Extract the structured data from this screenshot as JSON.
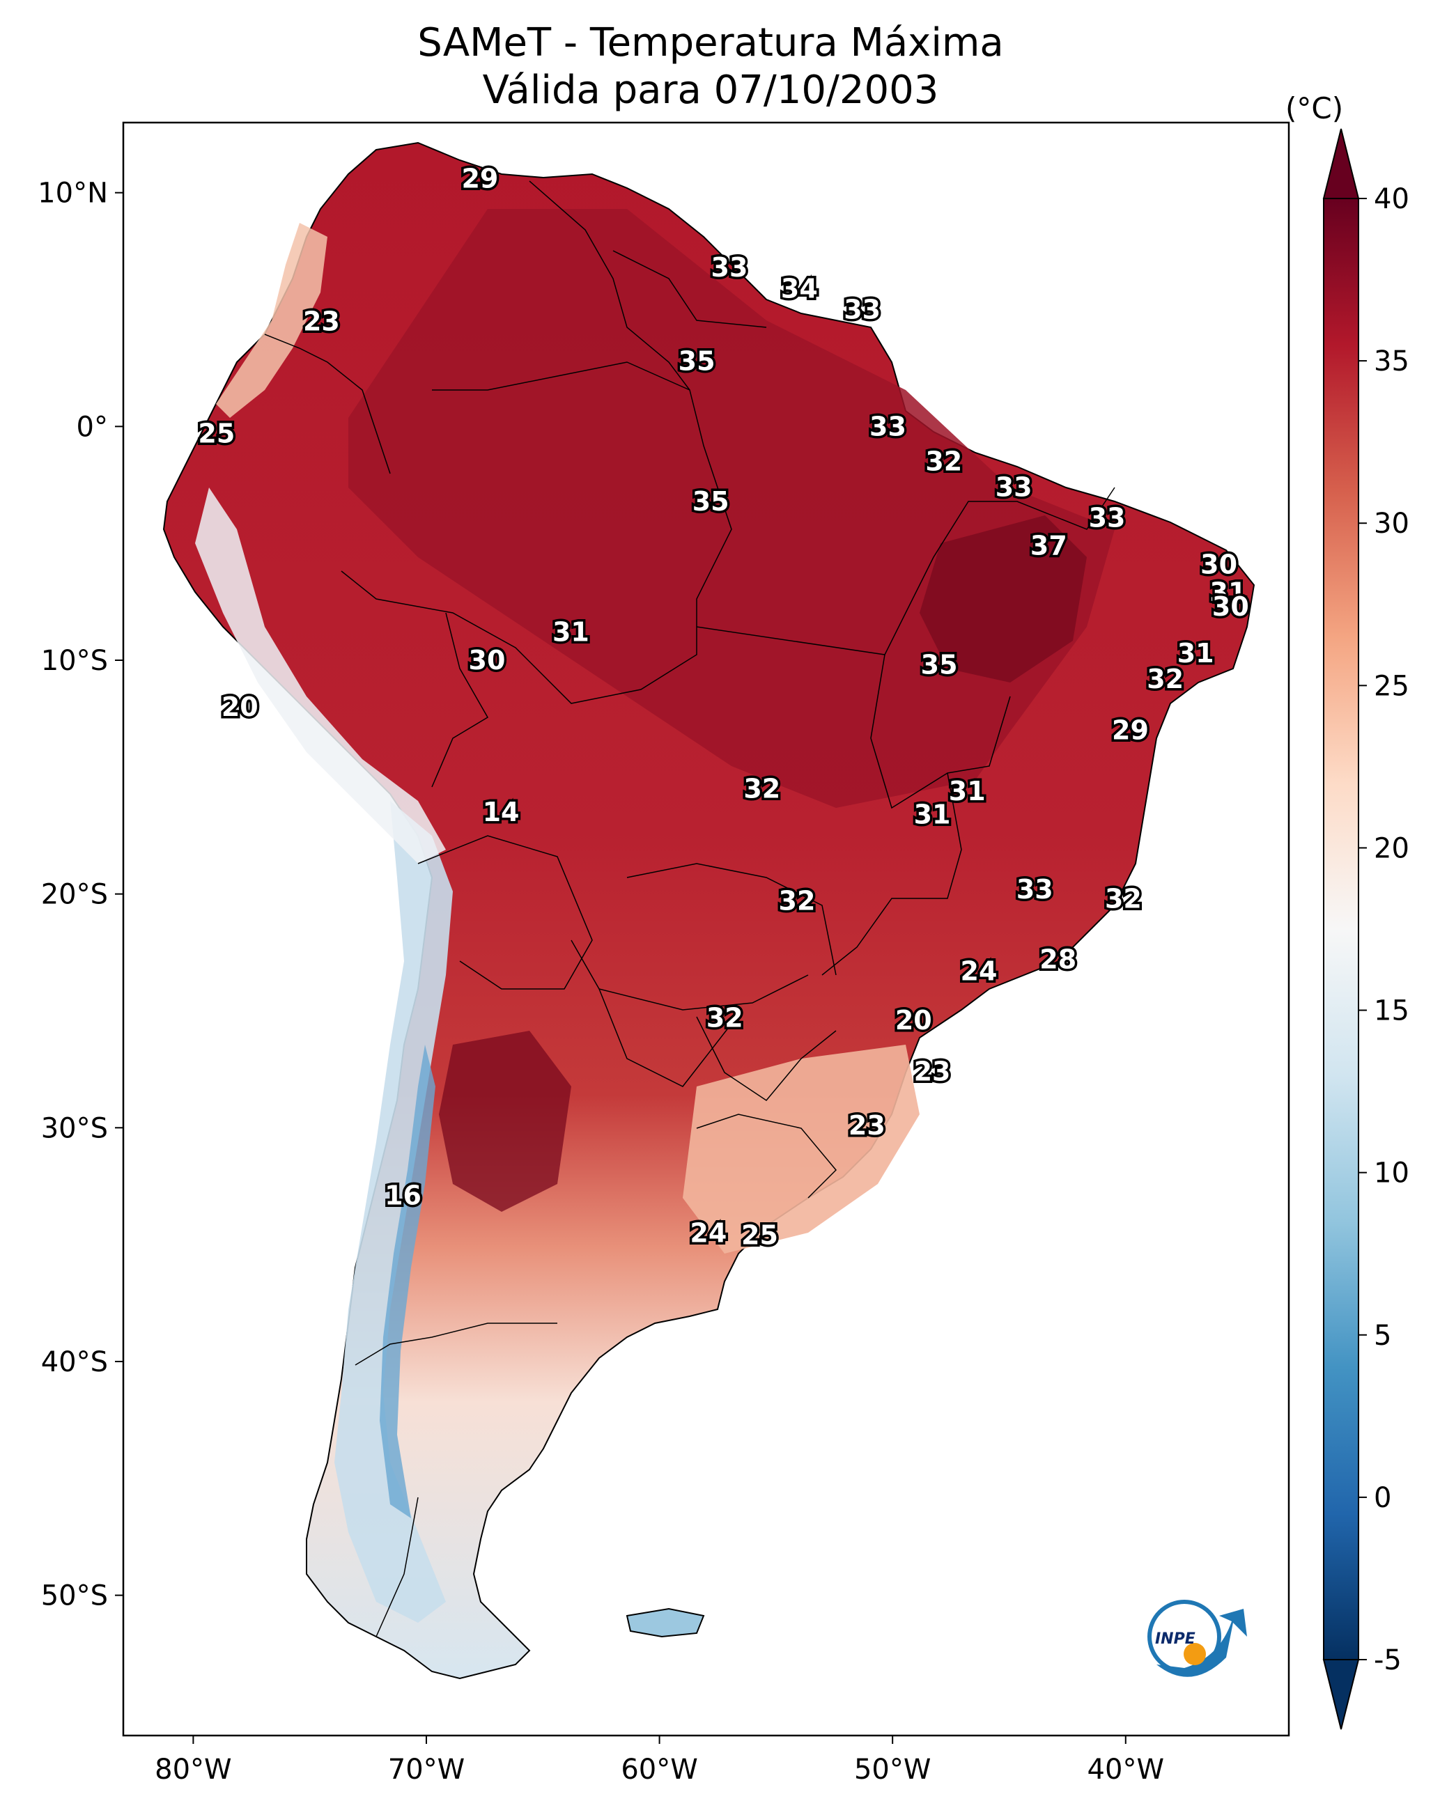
{
  "title": {
    "line1": "SAMeT - Temperatura Máxima",
    "line2": "Válida para 07/10/2003"
  },
  "map": {
    "lon_range": [
      -83,
      -33
    ],
    "lat_range": [
      -56,
      13
    ],
    "lon_ticks": [
      {
        "lon": -80,
        "label": "80°W"
      },
      {
        "lon": -70,
        "label": "70°W"
      },
      {
        "lon": -60,
        "label": "60°W"
      },
      {
        "lon": -50,
        "label": "50°W"
      },
      {
        "lon": -40,
        "label": "40°W"
      }
    ],
    "lat_ticks": [
      {
        "lat": 10,
        "label": "10°N"
      },
      {
        "lat": 0,
        "label": "0°"
      },
      {
        "lat": -10,
        "label": "10°S"
      },
      {
        "lat": -20,
        "label": "20°S"
      },
      {
        "lat": -30,
        "label": "30°S"
      },
      {
        "lat": -40,
        "label": "40°S"
      },
      {
        "lat": -50,
        "label": "50°S"
      }
    ],
    "station_values": [
      {
        "lon": -67.7,
        "lat": 10.6,
        "value": "29"
      },
      {
        "lon": -57.0,
        "lat": 6.8,
        "value": "33"
      },
      {
        "lon": -54.0,
        "lat": 5.9,
        "value": "34"
      },
      {
        "lon": -51.3,
        "lat": 5.0,
        "value": "33"
      },
      {
        "lon": -74.5,
        "lat": 4.5,
        "value": "23"
      },
      {
        "lon": -58.4,
        "lat": 2.8,
        "value": "35"
      },
      {
        "lon": -79.0,
        "lat": -0.3,
        "value": "25"
      },
      {
        "lon": -50.2,
        "lat": 0.0,
        "value": "33"
      },
      {
        "lon": -47.8,
        "lat": -1.5,
        "value": "32"
      },
      {
        "lon": -44.8,
        "lat": -2.6,
        "value": "33"
      },
      {
        "lon": -57.8,
        "lat": -3.2,
        "value": "35"
      },
      {
        "lon": -40.8,
        "lat": -3.9,
        "value": "33"
      },
      {
        "lon": -43.3,
        "lat": -5.1,
        "value": "37"
      },
      {
        "lon": -36.0,
        "lat": -5.9,
        "value": "30"
      },
      {
        "lon": -35.6,
        "lat": -7.1,
        "value": "31"
      },
      {
        "lon": -35.5,
        "lat": -7.7,
        "value": "30"
      },
      {
        "lon": -63.8,
        "lat": -8.8,
        "value": "31"
      },
      {
        "lon": -67.4,
        "lat": -10.0,
        "value": "30"
      },
      {
        "lon": -48.0,
        "lat": -10.2,
        "value": "35"
      },
      {
        "lon": -37.0,
        "lat": -9.7,
        "value": "31"
      },
      {
        "lon": -38.3,
        "lat": -10.8,
        "value": "32"
      },
      {
        "lon": -78.0,
        "lat": -12.0,
        "value": "20"
      },
      {
        "lon": -39.8,
        "lat": -13.0,
        "value": "29"
      },
      {
        "lon": -66.8,
        "lat": -16.5,
        "value": "14"
      },
      {
        "lon": -55.6,
        "lat": -15.5,
        "value": "32"
      },
      {
        "lon": -46.8,
        "lat": -15.6,
        "value": "31"
      },
      {
        "lon": -48.3,
        "lat": -16.6,
        "value": "31"
      },
      {
        "lon": -43.9,
        "lat": -19.8,
        "value": "33"
      },
      {
        "lon": -54.1,
        "lat": -20.3,
        "value": "32"
      },
      {
        "lon": -40.1,
        "lat": -20.2,
        "value": "32"
      },
      {
        "lon": -42.9,
        "lat": -22.8,
        "value": "28"
      },
      {
        "lon": -46.3,
        "lat": -23.3,
        "value": "24"
      },
      {
        "lon": -57.2,
        "lat": -25.3,
        "value": "32"
      },
      {
        "lon": -49.1,
        "lat": -25.4,
        "value": "20"
      },
      {
        "lon": -48.3,
        "lat": -27.6,
        "value": "23"
      },
      {
        "lon": -51.1,
        "lat": -29.9,
        "value": "23"
      },
      {
        "lon": -71.0,
        "lat": -32.9,
        "value": "16"
      },
      {
        "lon": -57.9,
        "lat": -34.5,
        "value": "24"
      },
      {
        "lon": -55.7,
        "lat": -34.6,
        "value": "25"
      }
    ]
  },
  "colorbar": {
    "unit": "(°C)",
    "min": -5,
    "max": 40,
    "ticks": [
      "-5",
      "0",
      "5",
      "10",
      "15",
      "20",
      "25",
      "30",
      "35",
      "40"
    ],
    "colors": [
      "#053061",
      "#2166ac",
      "#4393c3",
      "#92c5de",
      "#d1e5f0",
      "#f7f7f7",
      "#fddbc7",
      "#f4a582",
      "#d6604d",
      "#b2182b",
      "#67001f"
    ]
  },
  "logo": {
    "text": "INPE"
  },
  "palette": {
    "hot": "#b2182b",
    "very_hot": "#8b0a1f",
    "warm": "#d6604d",
    "mild": "#f4a582",
    "cool": "#fddbc7",
    "neutral": "#f7f7f7",
    "cold": "#92c5de",
    "very_cold": "#4393c3"
  }
}
